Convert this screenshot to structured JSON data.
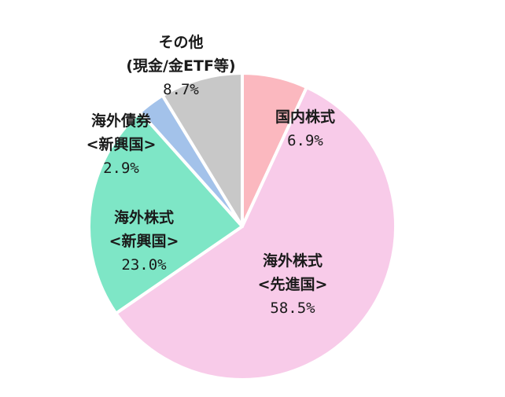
{
  "chart_data": {
    "type": "pie",
    "start_angle": "12 o'clock",
    "direction": "clockwise",
    "slices": [
      {
        "key": "domestic-stocks",
        "label_lines": [
          "国内株式"
        ],
        "value": 6.9,
        "value_label": "6.9%",
        "color": "#fbb8bf"
      },
      {
        "key": "foreign-stocks-developed",
        "label_lines": [
          "海外株式",
          "<先進国>"
        ],
        "value": 58.5,
        "value_label": "58.5%",
        "color": "#f8cbe9"
      },
      {
        "key": "foreign-stocks-emerging",
        "label_lines": [
          "海外株式",
          "<新興国>"
        ],
        "value": 23.0,
        "value_label": "23.0%",
        "color": "#7ee6c6"
      },
      {
        "key": "foreign-bonds-emerging",
        "label_lines": [
          "海外債券",
          "<新興国>"
        ],
        "value": 2.9,
        "value_label": "2.9%",
        "color": "#a3c2ea"
      },
      {
        "key": "other",
        "label_lines": [
          "その他",
          "(現金/金ETF等)"
        ],
        "value": 8.7,
        "value_label": "8.7%",
        "color": "#c8c8c8"
      }
    ]
  }
}
